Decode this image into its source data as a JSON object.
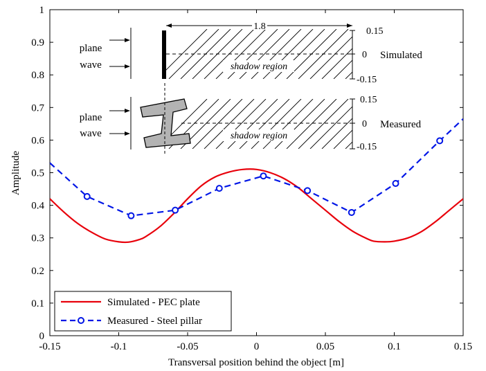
{
  "chart_data": {
    "type": "line",
    "xlabel": "Transversal position behind the object [m]",
    "ylabel": "Amplitude",
    "xlim": [
      -0.15,
      0.15
    ],
    "ylim": [
      0,
      1
    ],
    "xticks": [
      -0.15,
      -0.1,
      -0.05,
      0,
      0.05,
      0.1,
      0.15
    ],
    "xtick_labels": [
      "-0.15",
      "-0.1",
      "-0.05",
      "0",
      "0.05",
      "0.1",
      "0.15"
    ],
    "yticks": [
      0,
      0.1,
      0.2,
      0.3,
      0.4,
      0.5,
      0.6,
      0.7,
      0.8,
      0.9,
      1
    ],
    "ytick_labels": [
      "0",
      "0.1",
      "0.2",
      "0.3",
      "0.4",
      "0.5",
      "0.6",
      "0.7",
      "0.8",
      "0.9",
      "1"
    ],
    "grid": false,
    "legend_position": "bottom-left",
    "series": [
      {
        "name": "Simulated - PEC plate",
        "color": "#e8000b",
        "style": "solid",
        "x": [
          -0.15,
          -0.14,
          -0.13,
          -0.12,
          -0.11,
          -0.1,
          -0.093,
          -0.085,
          -0.08,
          -0.07,
          -0.06,
          -0.05,
          -0.04,
          -0.03,
          -0.02,
          -0.01,
          0,
          0.01,
          0.02,
          0.03,
          0.04,
          0.05,
          0.06,
          0.07,
          0.08,
          0.085,
          0.093,
          0.1,
          0.11,
          0.12,
          0.13,
          0.14,
          0.15
        ],
        "y": [
          0.42,
          0.38,
          0.345,
          0.318,
          0.297,
          0.288,
          0.287,
          0.295,
          0.305,
          0.335,
          0.375,
          0.42,
          0.46,
          0.487,
          0.502,
          0.51,
          0.51,
          0.5,
          0.482,
          0.455,
          0.42,
          0.385,
          0.35,
          0.32,
          0.298,
          0.29,
          0.288,
          0.29,
          0.3,
          0.32,
          0.35,
          0.385,
          0.42
        ]
      },
      {
        "name": "Measured - Steel pillar",
        "color": "#0016e6",
        "style": "dashed",
        "x": [
          -0.15,
          -0.123,
          -0.091,
          -0.059,
          -0.027,
          0.005,
          0.037,
          0.069,
          0.101,
          0.133,
          0.15
        ],
        "y": [
          0.53,
          0.427,
          0.368,
          0.385,
          0.452,
          0.49,
          0.445,
          0.378,
          0.467,
          0.598,
          0.665
        ],
        "markers_x": [
          -0.123,
          -0.091,
          -0.059,
          -0.027,
          0.005,
          0.037,
          0.069,
          0.101,
          0.133
        ],
        "markers_y": [
          0.427,
          0.368,
          0.385,
          0.452,
          0.49,
          0.445,
          0.378,
          0.467,
          0.598
        ]
      }
    ],
    "inset": {
      "dimension_label": "1.8",
      "incident_label_line1": "plane",
      "incident_label_line2": "wave",
      "region_label": "shadow region",
      "scale_ticks": [
        "0.15",
        "0",
        "-0.15"
      ],
      "top_case_label": "Simulated",
      "bottom_case_label": "Measured"
    }
  }
}
